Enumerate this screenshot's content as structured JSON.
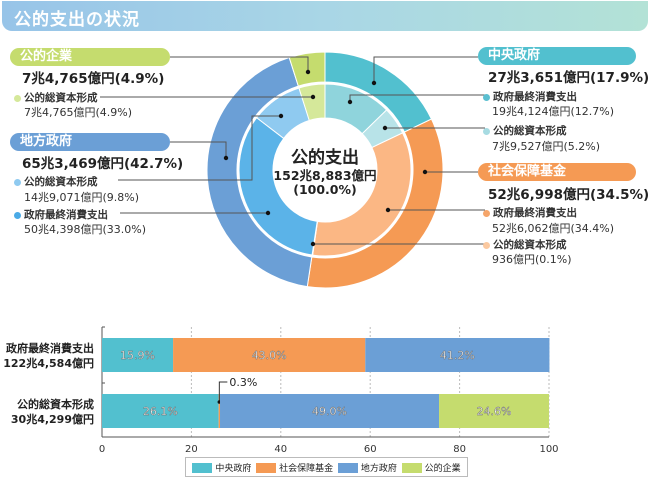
{
  "title": "公的支出の状況",
  "colors": {
    "central": "#52c0cf",
    "social": "#f59a54",
    "local": "#6b9fd6",
    "enterprise": "#c5dc6e"
  },
  "donut": {
    "center_title": "公的支出",
    "center_value": "152兆8,883億円",
    "center_pct": "(100.0%)",
    "groups": [
      {
        "key": "central",
        "label": "中央政府",
        "value": "27兆3,651億円(17.9%)",
        "share": 17.9,
        "items": [
          {
            "label": "政府最終消費支出",
            "value": "19兆4,124億円(12.7%)",
            "share": 12.7
          },
          {
            "label": "公的総資本形成",
            "value": "7兆9,527億円(5.2%)",
            "share": 5.2
          }
        ]
      },
      {
        "key": "social",
        "label": "社会保障基金",
        "value": "52兆6,998億円(34.5%)",
        "share": 34.5,
        "items": [
          {
            "label": "政府最終消費支出",
            "value": "52兆6,062億円(34.4%)",
            "share": 34.4
          },
          {
            "label": "公的総資本形成",
            "value": "936億円(0.1%)",
            "share": 0.1
          }
        ]
      },
      {
        "key": "local",
        "label": "地方政府",
        "value": "65兆3,469億円(42.7%)",
        "share": 42.7,
        "items": [
          {
            "label": "政府最終消費支出",
            "value": "50兆4,398億円(33.0%)",
            "share": 33.0
          },
          {
            "label": "公的総資本形成",
            "value": "14兆9,071億円(9.8%)",
            "share": 9.8
          }
        ]
      },
      {
        "key": "enterprise",
        "label": "公的企業",
        "value": "7兆4,765億円(4.9%)",
        "share": 4.9,
        "items": [
          {
            "label": "公的総資本形成",
            "value": "7兆4,765億円(4.9%)",
            "share": 4.9
          }
        ]
      }
    ]
  },
  "chart_data": {
    "type": "bar",
    "stacked": true,
    "orientation": "horizontal",
    "categories": [
      {
        "name": "政府最終消費支出",
        "total": "122兆4,584億円"
      },
      {
        "name": "公的総資本形成",
        "total": "30兆4,299億円"
      }
    ],
    "series": [
      {
        "name": "中央政府",
        "key": "central",
        "values": [
          15.9,
          26.1
        ],
        "labels": [
          "15.9%",
          "26.1%"
        ]
      },
      {
        "name": "社会保障基金",
        "key": "social",
        "values": [
          43.0,
          0.3
        ],
        "labels": [
          "43.0%",
          "0.3%"
        ]
      },
      {
        "name": "地方政府",
        "key": "local",
        "values": [
          41.2,
          49.0
        ],
        "labels": [
          "41.2%",
          "49.0%"
        ]
      },
      {
        "name": "公的企業",
        "key": "enterprise",
        "values": [
          0,
          24.6
        ],
        "labels": [
          "",
          "24.6%"
        ]
      }
    ],
    "xlim": [
      0,
      100
    ],
    "xticks": [
      "0",
      "20",
      "40",
      "60",
      "80",
      "100"
    ],
    "legend_position": "bottom"
  }
}
